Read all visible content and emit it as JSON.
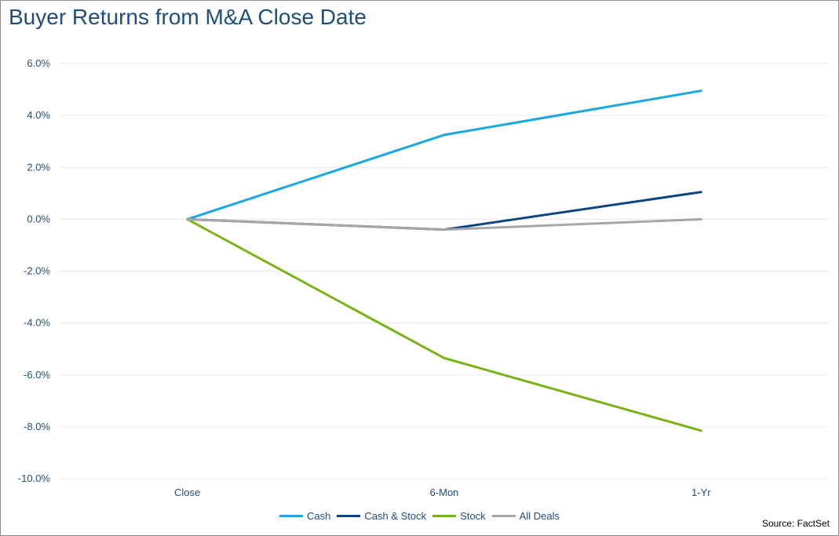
{
  "chart_data": {
    "type": "line",
    "title": "Buyer Returns from M&A Close Date",
    "categories": [
      "Close",
      "6-Mon",
      "1-Yr"
    ],
    "ylim": [
      -10.0,
      6.0
    ],
    "yticks": [
      6.0,
      4.0,
      2.0,
      0.0,
      -2.0,
      -4.0,
      -6.0,
      -8.0,
      -10.0
    ],
    "ytick_labels": [
      "6.0%",
      "4.0%",
      "2.0%",
      "0.0%",
      "-2.0%",
      "-4.0%",
      "-6.0%",
      "-8.0%",
      "-10.0%"
    ],
    "xlabel": "",
    "ylabel": "",
    "grid": true,
    "legend_position": "bottom",
    "series": [
      {
        "name": "Cash",
        "color": "#1ba8e0",
        "values": [
          0.0,
          3.25,
          4.95
        ]
      },
      {
        "name": "Cash & Stock",
        "color": "#0d4682",
        "values": [
          0.0,
          -0.4,
          1.05
        ]
      },
      {
        "name": "Stock",
        "color": "#7ab317",
        "values": [
          0.0,
          -5.35,
          -8.15
        ]
      },
      {
        "name": "All Deals",
        "color": "#a6a6a6",
        "values": [
          0.0,
          -0.4,
          0.0
        ]
      }
    ],
    "source": "Source: FactSet"
  }
}
